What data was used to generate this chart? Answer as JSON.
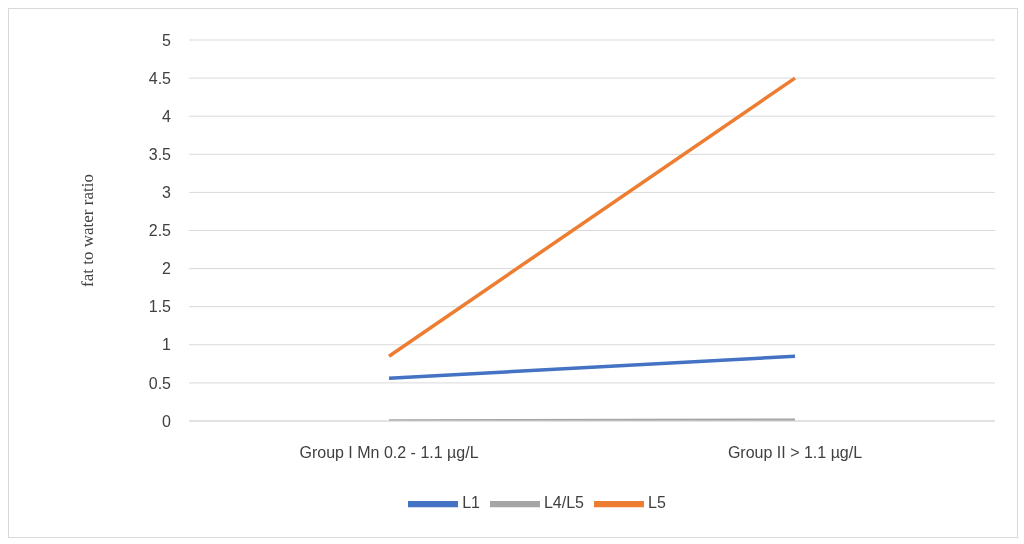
{
  "chart_data": {
    "type": "line",
    "ylabel": "fat to water ratio",
    "categories": [
      "Group I Mn 0.2 - 1.1 µg/L",
      "Group II > 1.1 µg/L"
    ],
    "series": [
      {
        "name": "L1",
        "color": "#4472c4",
        "values": [
          0.56,
          0.85
        ]
      },
      {
        "name": "L5",
        "color": "#ed7d31",
        "values": [
          0.85,
          4.5
        ]
      },
      {
        "name": "L4/L5",
        "color": "#a5a5a5",
        "values": [
          0,
          0.01
        ]
      }
    ],
    "ylim": [
      0,
      5
    ],
    "yticks": [
      0,
      0.5,
      1,
      1.5,
      2,
      2.5,
      3,
      3.5,
      4,
      4.5,
      5
    ],
    "grid": "y",
    "legend": "bottom",
    "marker": "none",
    "line_style": "solid"
  }
}
